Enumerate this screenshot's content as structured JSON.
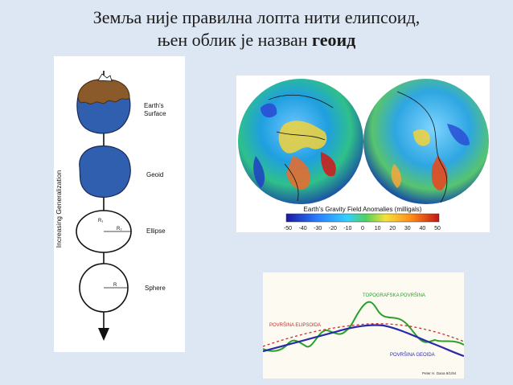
{
  "title": {
    "line1": "Земља није правилна лопта нити елипсоид,",
    "line2_prefix": "њен облик је назван ",
    "line2_bold": "геоид"
  },
  "generalization": {
    "axis_label": "Increasing Generalization",
    "items": [
      {
        "label1": "Earth's",
        "label2": "Surface"
      },
      {
        "label1": "Geoid"
      },
      {
        "label1": "Ellipse",
        "r1": "R₁",
        "r2": "R₂"
      },
      {
        "label1": "Sphere",
        "r": "R"
      }
    ]
  },
  "gravity_map": {
    "caption": "Earth's Gravity Field Anomalies (milligals)",
    "ticks": [
      "-50",
      "-40",
      "-30",
      "-20",
      "-10",
      "0",
      "10",
      "20",
      "30",
      "40",
      "50"
    ]
  },
  "profile": {
    "topo_label": "TOPOGRAFSKA POVRŠINA",
    "ellipsoid_label": "POVRŠINA ELIPSOIDA",
    "geoid_label": "POVRŠINA GEOIDA",
    "credit": "Peter H. Dana 9/1/94"
  },
  "colors": {
    "earth_blue": "#2f5fae",
    "land_brown": "#8a5a2b",
    "topo_green": "#2aa02a",
    "geoid_blue": "#2a2aa8",
    "ellipsoid_red": "#cc2b2b"
  }
}
